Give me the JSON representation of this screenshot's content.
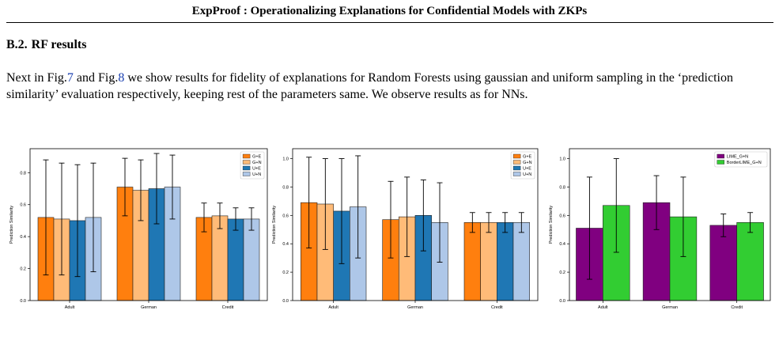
{
  "header": {
    "title": "ExpProof : Operationalizing Explanations for Confidential Models with ZKPs"
  },
  "section": {
    "number": "B.2.",
    "title": "RF results"
  },
  "paragraph": {
    "part1": "Next in Fig.",
    "fig_ref_a": "7",
    "part2": " and Fig.",
    "fig_ref_b": "8",
    "part3": " we show results for fidelity of explanations for Random Forests using gaussian and uniform sampling in the ‘prediction similarity’ evaluation respectively, keeping rest of the parameters same. We observe results as for NNs."
  },
  "caption_fragment": "",
  "chart_data": [
    {
      "type": "bar",
      "categories": [
        "Adult",
        "German",
        "Credit"
      ],
      "ylabel": "Prediction Similarity",
      "xlabel": "",
      "ylim": [
        0,
        0.95
      ],
      "yticks": [
        0.0,
        0.2,
        0.4,
        0.6,
        0.8
      ],
      "legend_position": "top-right",
      "series": [
        {
          "name": "G+E",
          "color": "#ff7f0e",
          "values": [
            0.52,
            0.71,
            0.52
          ],
          "errors": [
            0.36,
            0.18,
            0.09
          ]
        },
        {
          "name": "G+N",
          "color": "#ffbb78",
          "values": [
            0.51,
            0.69,
            0.53
          ],
          "errors": [
            0.35,
            0.19,
            0.08
          ]
        },
        {
          "name": "U+E",
          "color": "#1f77b4",
          "values": [
            0.5,
            0.7,
            0.51
          ],
          "errors": [
            0.35,
            0.22,
            0.07
          ]
        },
        {
          "name": "U+N",
          "color": "#aec7e8",
          "values": [
            0.52,
            0.71,
            0.51
          ],
          "errors": [
            0.34,
            0.2,
            0.07
          ]
        }
      ]
    },
    {
      "type": "bar",
      "categories": [
        "Adult",
        "German",
        "Credit"
      ],
      "ylabel": "Prediction Similarity",
      "xlabel": "",
      "ylim": [
        0,
        1.07
      ],
      "yticks": [
        0.0,
        0.2,
        0.4,
        0.6,
        0.8,
        1.0
      ],
      "legend_position": "top-right",
      "series": [
        {
          "name": "G+E",
          "color": "#ff7f0e",
          "values": [
            0.69,
            0.57,
            0.55
          ],
          "errors": [
            0.32,
            0.27,
            0.07
          ]
        },
        {
          "name": "G+N",
          "color": "#ffbb78",
          "values": [
            0.68,
            0.59,
            0.55
          ],
          "errors": [
            0.32,
            0.28,
            0.07
          ]
        },
        {
          "name": "U+E",
          "color": "#1f77b4",
          "values": [
            0.63,
            0.6,
            0.55
          ],
          "errors": [
            0.37,
            0.25,
            0.07
          ]
        },
        {
          "name": "U+N",
          "color": "#aec7e8",
          "values": [
            0.66,
            0.55,
            0.55
          ],
          "errors": [
            0.36,
            0.28,
            0.07
          ]
        }
      ]
    },
    {
      "type": "bar",
      "categories": [
        "Adult",
        "German",
        "Credit"
      ],
      "ylabel": "Prediction Similarity",
      "xlabel": "",
      "ylim": [
        0,
        1.07
      ],
      "yticks": [
        0.0,
        0.2,
        0.4,
        0.6,
        0.8,
        1.0
      ],
      "legend_position": "top-right",
      "series": [
        {
          "name": "LIME_G+N",
          "color": "#800080",
          "values": [
            0.51,
            0.69,
            0.53
          ],
          "errors": [
            0.36,
            0.19,
            0.08
          ]
        },
        {
          "name": "BorderLIME_G+N",
          "color": "#32cd32",
          "values": [
            0.67,
            0.59,
            0.55
          ],
          "errors": [
            0.33,
            0.28,
            0.07
          ]
        }
      ]
    }
  ]
}
